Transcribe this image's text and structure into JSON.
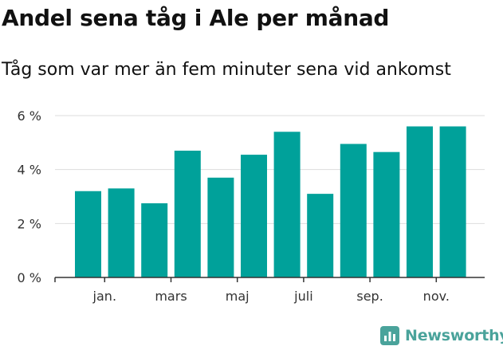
{
  "title": "Andel sena tåg i Ale per månad",
  "subtitle": "Tåg som var mer än fem minuter sena vid ankomst",
  "brand": {
    "name": "Newsworthy",
    "color": "#4aa39b"
  },
  "colors": {
    "bar": "#00a19a",
    "grid": "#dddddd",
    "axis": "#333333"
  },
  "chart_data": {
    "type": "bar",
    "title": "Andel sena tåg i Ale per månad",
    "subtitle": "Tåg som var mer än fem minuter sena vid ankomst",
    "xlabel": "",
    "ylabel": "",
    "ylim": [
      0,
      6
    ],
    "y_ticks": [
      0,
      2,
      4,
      6
    ],
    "y_tick_labels": [
      "0 %",
      "2 %",
      "4 %",
      "6 %"
    ],
    "x_tick_labels": [
      {
        "after_bar": 1,
        "label": "jan."
      },
      {
        "after_bar": 3,
        "label": "mars"
      },
      {
        "after_bar": 5,
        "label": "maj"
      },
      {
        "after_bar": 7,
        "label": "juli"
      },
      {
        "after_bar": 9,
        "label": "sep."
      },
      {
        "after_bar": 11,
        "label": "nov."
      }
    ],
    "grid": true,
    "legend": "none",
    "values": [
      3.2,
      3.3,
      2.75,
      4.7,
      3.7,
      4.55,
      5.4,
      3.1,
      4.95,
      4.65,
      5.6,
      5.6
    ]
  }
}
